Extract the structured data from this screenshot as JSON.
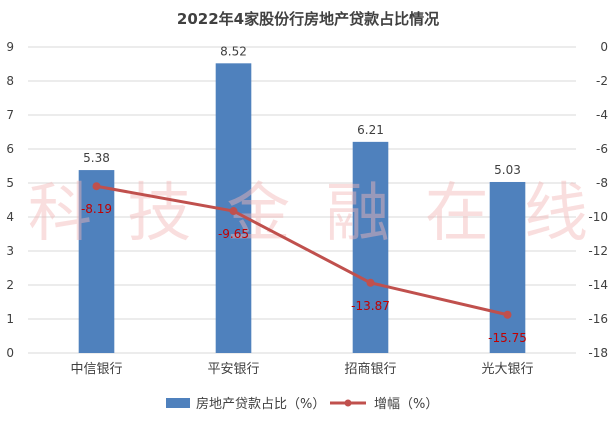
{
  "chart_data": {
    "type": "bar+line",
    "title": "2022年4家股份行房地产贷款占比情况",
    "categories": [
      "中信银行",
      "平安银行",
      "招商银行",
      "光大银行"
    ],
    "series": [
      {
        "name": "房地产贷款占比（%）",
        "type": "bar",
        "axis": "left",
        "values": [
          5.38,
          8.52,
          6.21,
          5.03
        ],
        "labels": [
          "5.38",
          "8.52",
          "6.21",
          "5.03"
        ],
        "color": "#4f81bd"
      },
      {
        "name": "增幅（%）",
        "type": "line",
        "axis": "right",
        "values": [
          -8.19,
          -9.65,
          -13.87,
          -15.75
        ],
        "labels": [
          "-8.19",
          "-9.65",
          "-13.87",
          "-15.75"
        ],
        "color": "#c0504d",
        "label_color": "#c00000"
      }
    ],
    "y_left": {
      "min": 0,
      "max": 9,
      "step": 1,
      "ticks": [
        "0",
        "1",
        "2",
        "3",
        "4",
        "5",
        "6",
        "7",
        "8",
        "9"
      ]
    },
    "y_right": {
      "min": -18,
      "max": 0,
      "step": 2,
      "ticks": [
        "-18",
        "-16",
        "-14",
        "-12",
        "-10",
        "-8",
        "-6",
        "-4",
        "-2",
        "0"
      ]
    },
    "grid": true,
    "legend": "bottom"
  },
  "watermark": "科技金融在线"
}
